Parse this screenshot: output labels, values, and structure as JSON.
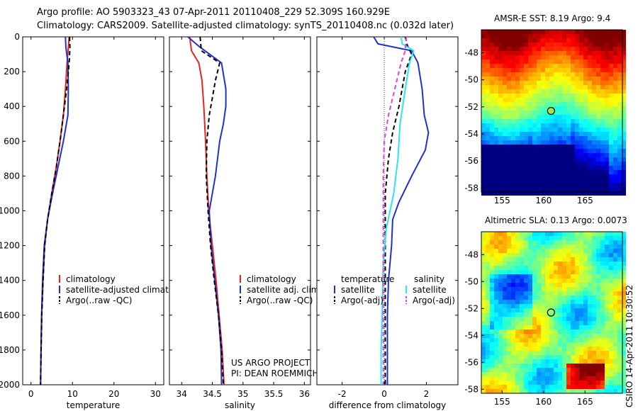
{
  "header": {
    "line1": "Argo profile: AO 5903323_43 07-Apr-2011 20110408_229 52.309S 160.929E",
    "line2": "Climatology: CARS2009. Satellite-adjusted climatology: synTS_20110408.nc (0.032d later)"
  },
  "credit": "CSIRO 14-Apr-2011 10:30:52",
  "colors": {
    "red": "#e8231e",
    "blue": "#1f2fd6",
    "black": "#000000",
    "cyan": "#27e8f0",
    "magenta": "#e040e8"
  },
  "chart_data": [
    {
      "type": "line",
      "id": "temperature",
      "xlabel": "temperature",
      "ylabel": "",
      "xlim": [
        -2,
        32
      ],
      "ylim": [
        2000,
        0
      ],
      "xticks": [
        "0",
        "10",
        "20",
        "30"
      ],
      "xtickvals": [
        0,
        10,
        20,
        30
      ],
      "yticks": [
        "0",
        "200",
        "400",
        "600",
        "800",
        "1000",
        "1200",
        "1400",
        "1600",
        "1800",
        "2000"
      ],
      "ytickvals": [
        0,
        200,
        400,
        600,
        800,
        1000,
        1200,
        1400,
        1600,
        1800,
        2000
      ],
      "series": [
        {
          "name": "climatology",
          "color": "red",
          "dash": false,
          "points": [
            [
              9.2,
              0
            ],
            [
              9.0,
              60
            ],
            [
              8.7,
              150
            ],
            [
              8.3,
              300
            ],
            [
              7.8,
              450
            ],
            [
              7.0,
              600
            ],
            [
              6.1,
              750
            ],
            [
              5.0,
              900
            ],
            [
              4.0,
              1050
            ],
            [
              3.3,
              1200
            ],
            [
              2.9,
              1400
            ],
            [
              2.6,
              1600
            ],
            [
              2.45,
              1800
            ],
            [
              2.3,
              2000
            ]
          ]
        },
        {
          "name": "satellite-adjusted climatology",
          "color": "blue",
          "dash": false,
          "points": [
            [
              8.3,
              0
            ],
            [
              8.4,
              60
            ],
            [
              8.9,
              150
            ],
            [
              9.0,
              300
            ],
            [
              8.9,
              450
            ],
            [
              7.8,
              600
            ],
            [
              6.5,
              750
            ],
            [
              5.2,
              900
            ],
            [
              4.0,
              1050
            ],
            [
              3.2,
              1200
            ],
            [
              2.8,
              1400
            ],
            [
              2.55,
              1600
            ],
            [
              2.4,
              1800
            ],
            [
              2.3,
              2000
            ]
          ]
        },
        {
          "name": "Argo(..raw -QC)",
          "color": "black",
          "dash": true,
          "points": [
            [
              9.3,
              0
            ],
            [
              9.4,
              60
            ],
            [
              9.2,
              150
            ],
            [
              8.6,
              300
            ],
            [
              7.8,
              450
            ],
            [
              7.0,
              600
            ],
            [
              6.1,
              750
            ],
            [
              5.0,
              900
            ],
            [
              4.0,
              1050
            ],
            [
              3.3,
              1200
            ],
            [
              2.9,
              1400
            ],
            [
              2.6,
              1600
            ],
            [
              2.45,
              1800
            ],
            [
              2.3,
              2000
            ]
          ]
        }
      ],
      "legend": {
        "placement": "lower-right",
        "entries": [
          "climatology",
          "satellite-adjusted climatology",
          "Argo(..raw -QC)"
        ]
      }
    },
    {
      "type": "line",
      "id": "salinity",
      "xlabel": "salinity",
      "ylabel": "",
      "xlim": [
        33.8,
        36.1
      ],
      "ylim": [
        2000,
        0
      ],
      "xticks": [
        "34",
        "34.5",
        "35",
        "35.5",
        "36"
      ],
      "xtickvals": [
        34,
        34.5,
        35,
        35.5,
        36
      ],
      "series": [
        {
          "name": "climatology",
          "color": "red",
          "dash": false,
          "points": [
            [
              34.13,
              0
            ],
            [
              34.16,
              80
            ],
            [
              34.28,
              150
            ],
            [
              34.33,
              250
            ],
            [
              34.36,
              400
            ],
            [
              34.39,
              600
            ],
            [
              34.41,
              800
            ],
            [
              34.44,
              1000
            ],
            [
              34.5,
              1200
            ],
            [
              34.56,
              1400
            ],
            [
              34.61,
              1600
            ],
            [
              34.66,
              1800
            ],
            [
              34.69,
              2000
            ]
          ]
        },
        {
          "name": "satellite adj. clim.",
          "color": "blue",
          "dash": false,
          "points": [
            [
              34.1,
              0
            ],
            [
              34.3,
              60
            ],
            [
              34.65,
              150
            ],
            [
              34.72,
              300
            ],
            [
              34.72,
              400
            ],
            [
              34.68,
              500
            ],
            [
              34.62,
              600
            ],
            [
              34.55,
              800
            ],
            [
              34.45,
              1000
            ],
            [
              34.48,
              1200
            ],
            [
              34.54,
              1400
            ],
            [
              34.6,
              1600
            ],
            [
              34.64,
              1800
            ],
            [
              34.65,
              2000
            ]
          ]
        },
        {
          "name": "Argo(..raw -QC)",
          "color": "black",
          "dash": true,
          "points": [
            [
              34.3,
              0
            ],
            [
              34.32,
              80
            ],
            [
              34.62,
              150
            ],
            [
              34.55,
              250
            ],
            [
              34.5,
              350
            ],
            [
              34.45,
              450
            ],
            [
              34.41,
              600
            ],
            [
              34.4,
              800
            ],
            [
              34.43,
              1000
            ],
            [
              34.47,
              1200
            ],
            [
              34.53,
              1400
            ],
            [
              34.6,
              1600
            ],
            [
              34.65,
              1800
            ],
            [
              34.68,
              2000
            ]
          ]
        }
      ],
      "legend": {
        "placement": "lower-right",
        "entries": [
          "climatology",
          "satellite adj. clim.",
          "Argo(..raw -QC)"
        ]
      },
      "annotations": [
        "US ARGO PROJECT",
        "PI: DEAN ROEMMICH"
      ]
    },
    {
      "type": "line",
      "id": "difference",
      "xlabel": "difference from climatology",
      "ylabel": "",
      "xlim": [
        -3.2,
        3.5
      ],
      "ylim": [
        2000,
        0
      ],
      "xticks": [
        "-2",
        "0",
        "2"
      ],
      "xtickvals": [
        -2,
        0,
        2
      ],
      "zero_line": true,
      "series": [
        {
          "name": "temperature satellite",
          "color": "blue",
          "dash": false,
          "points": [
            [
              -0.5,
              0
            ],
            [
              -0.3,
              40
            ],
            [
              1.3,
              80
            ],
            [
              1.6,
              150
            ],
            [
              1.8,
              300
            ],
            [
              1.9,
              450
            ],
            [
              2.1,
              550
            ],
            [
              1.95,
              650
            ],
            [
              1.3,
              800
            ],
            [
              0.7,
              950
            ],
            [
              0.4,
              1050
            ],
            [
              0.35,
              1200
            ],
            [
              0.2,
              1400
            ],
            [
              0.15,
              1600
            ],
            [
              0.15,
              1800
            ],
            [
              0.15,
              2000
            ]
          ]
        },
        {
          "name": "temperature Argo(-adj)",
          "color": "black",
          "dash": true,
          "points": [
            [
              1.0,
              0
            ],
            [
              1.1,
              50
            ],
            [
              1.3,
              100
            ],
            [
              1.0,
              200
            ],
            [
              0.7,
              400
            ],
            [
              0.4,
              550
            ],
            [
              0.2,
              700
            ],
            [
              0.05,
              900
            ],
            [
              0.05,
              1100
            ],
            [
              0.05,
              1400
            ],
            [
              0.05,
              1700
            ],
            [
              0.05,
              2000
            ]
          ]
        },
        {
          "name": "salinity satellite",
          "color": "cyan",
          "dash": false,
          "points": [
            [
              0.8,
              0
            ],
            [
              0.85,
              40
            ],
            [
              1.4,
              80
            ],
            [
              1.2,
              150
            ],
            [
              1.0,
              300
            ],
            [
              0.75,
              500
            ],
            [
              0.65,
              700
            ],
            [
              0.45,
              900
            ],
            [
              0.1,
              1100
            ],
            [
              -0.05,
              1300
            ],
            [
              -0.1,
              1600
            ],
            [
              -0.15,
              1800
            ],
            [
              -0.15,
              2000
            ]
          ]
        },
        {
          "name": "salinity Argo(-adj)",
          "color": "magenta",
          "dash": true,
          "points": [
            [
              1.05,
              0
            ],
            [
              1.0,
              80
            ],
            [
              0.8,
              150
            ],
            [
              0.5,
              300
            ],
            [
              0.2,
              450
            ],
            [
              0.0,
              600
            ],
            [
              -0.05,
              800
            ],
            [
              -0.05,
              1000
            ],
            [
              -0.05,
              1300
            ],
            [
              -0.05,
              1600
            ],
            [
              -0.05,
              2000
            ]
          ]
        }
      ],
      "legend": {
        "placement": "lower-center",
        "headings": [
          "temperature",
          "salinity"
        ],
        "temperature_entries": [
          "satellite",
          "Argo(-adj)"
        ],
        "salinity_entries": [
          "satellite",
          "Argo(-adj)"
        ]
      }
    },
    {
      "type": "heatmap",
      "id": "sst-map",
      "title": "AMSR-E SST: 8.19 Argo: 9.4",
      "xlim": [
        152.5,
        169.5
      ],
      "ylim": [
        -58.3,
        -46.3
      ],
      "xticks": [
        "155",
        "160",
        "165"
      ],
      "xtickvals": [
        155,
        160,
        165
      ],
      "yticks": [
        "-48",
        "-50",
        "-52",
        "-54",
        "-56",
        "-58"
      ],
      "ytickvals": [
        -48,
        -50,
        -52,
        -54,
        -56,
        -58
      ],
      "marker": {
        "lon": 160.9,
        "lat": -52.3
      }
    },
    {
      "type": "heatmap",
      "id": "sla-map",
      "title": "Altimetric SLA: 0.13 Argo: 0.0073",
      "xlim": [
        152.5,
        169.5
      ],
      "ylim": [
        -58.3,
        -46.3
      ],
      "xticks": [
        "155",
        "160",
        "165"
      ],
      "xtickvals": [
        155,
        160,
        165
      ],
      "yticks": [
        "-48",
        "-50",
        "-52",
        "-54",
        "-56",
        "-58"
      ],
      "ytickvals": [
        -48,
        -50,
        -52,
        -54,
        -56,
        -58
      ],
      "marker": {
        "lon": 160.9,
        "lat": -52.3
      }
    }
  ]
}
